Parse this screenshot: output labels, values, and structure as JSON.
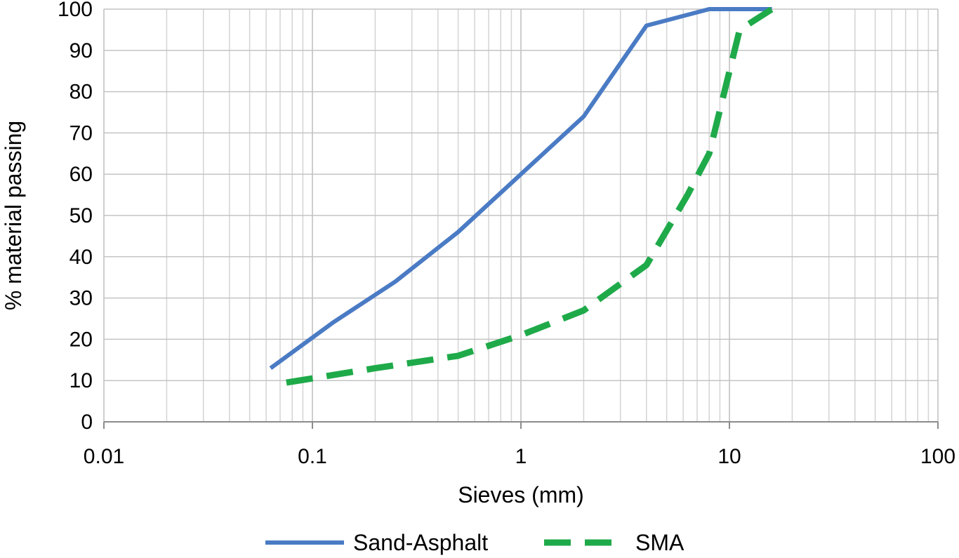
{
  "chart_data": {
    "type": "line",
    "x_scale": "log",
    "xlabel": "Sieves (mm)",
    "ylabel": "% material passing",
    "xlim": [
      0.01,
      100
    ],
    "ylim": [
      0,
      100
    ],
    "x_ticks": [
      0.01,
      0.1,
      1,
      10,
      100
    ],
    "x_tick_labels": [
      "0.01",
      "0.1",
      "1",
      "10",
      "100"
    ],
    "y_ticks": [
      0,
      10,
      20,
      30,
      40,
      50,
      60,
      70,
      80,
      90,
      100
    ],
    "y_tick_labels": [
      "0",
      "10",
      "20",
      "30",
      "40",
      "50",
      "60",
      "70",
      "80",
      "90",
      "100"
    ],
    "grid": true,
    "legend_position": "bottom",
    "series": [
      {
        "name": "Sand-Asphalt",
        "color": "#4a7bc4",
        "style": "solid",
        "x": [
          0.063,
          0.125,
          0.25,
          0.5,
          1,
          2,
          4,
          8,
          16
        ],
        "y": [
          13,
          24,
          34,
          46,
          60,
          74,
          96,
          100,
          100
        ]
      },
      {
        "name": "SMA",
        "color": "#1faa4a",
        "style": "dashed",
        "x": [
          0.075,
          0.2,
          0.5,
          1,
          2,
          4,
          6.3,
          8,
          11.2,
          16
        ],
        "y": [
          9.5,
          13,
          16,
          21,
          27,
          38,
          55,
          65,
          95,
          100
        ]
      }
    ]
  }
}
